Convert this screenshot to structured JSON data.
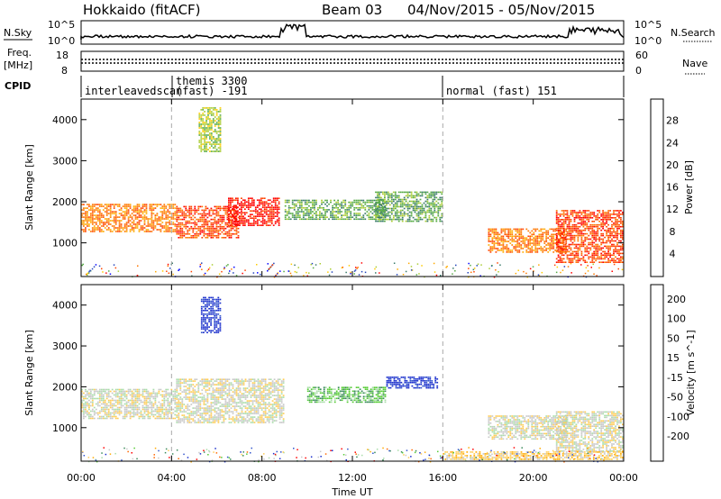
{
  "header": {
    "title": "Hokkaido (fitACF)",
    "beam": "Beam 03",
    "date_range": "04/Nov/2015 - 05/Nov/2015"
  },
  "top_panels": {
    "nsky_label": "N.Sky",
    "nsky_ticks": [
      "10^5",
      "10^0"
    ],
    "nsearch_label": "N.Search",
    "nsearch_ticks": [
      "10^5",
      "10^0"
    ],
    "freq_label": "Freq.",
    "freq_unit": "[MHz]",
    "freq_ticks": [
      "18",
      "8"
    ],
    "nave_label": "Nave",
    "nave_ticks": [
      "60",
      "0"
    ],
    "cpid_label": "CPID"
  },
  "cpid_segments": [
    {
      "label": "interleavedscan",
      "start_hour": 0,
      "end_hour": 4.0
    },
    {
      "label": "themis 3300",
      "label2": "(fast) -191",
      "start_hour": 4.0,
      "end_hour": 16.0
    },
    {
      "label": "normal (fast) 151",
      "start_hour": 16.0,
      "end_hour": 24
    }
  ],
  "chart_data": [
    {
      "type": "heatmap",
      "name": "power",
      "ylabel": "Slant Range [km]",
      "xlabel": "Time UT",
      "ylim": [
        180,
        4500
      ],
      "xlim_hours": [
        0,
        24
      ],
      "y_ticks": [
        1000,
        2000,
        3000,
        4000
      ],
      "x_tick_labels": [
        "00:00",
        "04:00",
        "08:00",
        "12:00",
        "16:00",
        "20:00",
        "00:00"
      ],
      "colorbar": {
        "label": "Power [dB]",
        "ticks": [
          "4",
          "8",
          "12",
          "16",
          "20",
          "24",
          "28"
        ],
        "colors": [
          "#0000ff",
          "#2244bb",
          "#3a7a6a",
          "#55aa44",
          "#aacc33",
          "#ffcc00",
          "#ffaa00",
          "#ff7700",
          "#ff4400",
          "#ff0000"
        ]
      },
      "regions": [
        {
          "t0": 0.0,
          "t1": 4.2,
          "r0": 1250,
          "r1": 1950,
          "level": 7
        },
        {
          "t0": 4.2,
          "t1": 7.0,
          "r0": 1100,
          "r1": 1900,
          "level": 8
        },
        {
          "t0": 6.5,
          "t1": 8.8,
          "r0": 1400,
          "r1": 2100,
          "level": 9
        },
        {
          "t0": 9.0,
          "t1": 13.5,
          "r0": 1550,
          "r1": 2050,
          "level": 3
        },
        {
          "t0": 13.0,
          "t1": 16.0,
          "r0": 1500,
          "r1": 2250,
          "level": 3
        },
        {
          "t0": 18.0,
          "t1": 21.5,
          "r0": 750,
          "r1": 1350,
          "level": 7
        },
        {
          "t0": 21.0,
          "t1": 24.0,
          "r0": 500,
          "r1": 1800,
          "level": 8
        },
        {
          "t0": 5.2,
          "t1": 6.2,
          "r0": 3200,
          "r1": 4300,
          "level": 4
        }
      ]
    },
    {
      "type": "heatmap",
      "name": "velocity",
      "ylabel": "Slant Range [km]",
      "xlabel": "Time UT",
      "ylim": [
        180,
        4500
      ],
      "xlim_hours": [
        0,
        24
      ],
      "y_ticks": [
        1000,
        2000,
        3000,
        4000
      ],
      "x_tick_labels": [
        "00:00",
        "04:00",
        "08:00",
        "12:00",
        "16:00",
        "20:00",
        "00:00"
      ],
      "colorbar": {
        "label": "Velocity [m s^-1]",
        "ticks": [
          "200",
          "100",
          "50",
          "15",
          "-15",
          "-50",
          "-100",
          "-200"
        ],
        "colors": [
          "#1a2ecc",
          "#3355cc",
          "#3a8a5a",
          "#55cc33",
          "#aaddaa",
          "#c8c8c8",
          "#ffcc55",
          "#ffaa00",
          "#ff6600",
          "#ff0000"
        ]
      },
      "regions": [
        {
          "t0": 0.0,
          "t1": 4.2,
          "r0": 1200,
          "r1": 1950,
          "level": 5
        },
        {
          "t0": 4.2,
          "t1": 9.0,
          "r0": 1100,
          "r1": 2200,
          "level": 5
        },
        {
          "t0": 13.5,
          "t1": 15.8,
          "r0": 1950,
          "r1": 2250,
          "level": 0
        },
        {
          "t0": 10.0,
          "t1": 13.5,
          "r0": 1600,
          "r1": 2000,
          "level": 3
        },
        {
          "t0": 18.0,
          "t1": 21.5,
          "r0": 700,
          "r1": 1300,
          "level": 5
        },
        {
          "t0": 21.0,
          "t1": 24.0,
          "r0": 400,
          "r1": 1400,
          "level": 5
        },
        {
          "t0": 5.3,
          "t1": 6.2,
          "r0": 3300,
          "r1": 4200,
          "level": 0
        },
        {
          "t0": 16.0,
          "t1": 24.0,
          "r0": 200,
          "r1": 420,
          "level": 6
        }
      ]
    }
  ]
}
